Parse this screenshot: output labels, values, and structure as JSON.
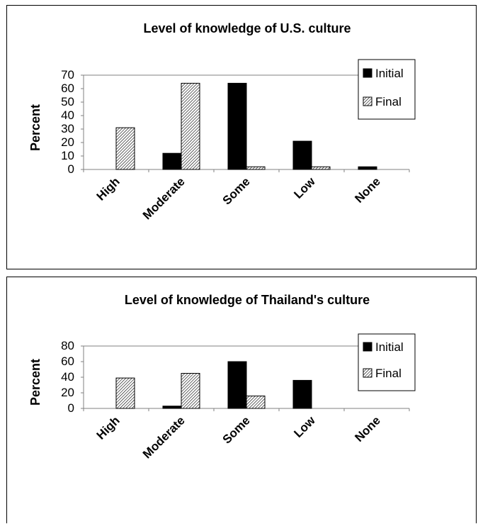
{
  "colors": {
    "initial": "#000000",
    "final_hatch": "#000000",
    "background": "#ffffff"
  },
  "chart_data": [
    {
      "type": "bar",
      "title": "Level of knowledge of U.S. culture",
      "ylabel": "Percent",
      "xlabel": "",
      "categories": [
        "High",
        "Moderate",
        "Some",
        "Low",
        "None"
      ],
      "yticks": [
        "70",
        "60",
        "50",
        "40",
        "30",
        "20",
        "10",
        "0"
      ],
      "ylim": [
        0,
        70
      ],
      "grid": false,
      "legend": "top-right",
      "series": [
        {
          "name": "Initial",
          "values": [
            0,
            12,
            64,
            21,
            2
          ]
        },
        {
          "name": "Final",
          "values": [
            31,
            64,
            2,
            2,
            0
          ]
        }
      ]
    },
    {
      "type": "bar",
      "title": "Level of knowledge of Thailand's culture",
      "ylabel": "Percent",
      "xlabel": "",
      "categories": [
        "High",
        "Moderate",
        "Some",
        "Low",
        "None"
      ],
      "yticks": [
        "80",
        "60",
        "40",
        "20",
        "0"
      ],
      "ylim": [
        0,
        80
      ],
      "grid": false,
      "legend": "top-right",
      "series": [
        {
          "name": "Initial",
          "values": [
            0,
            3,
            60,
            36,
            0
          ]
        },
        {
          "name": "Final",
          "values": [
            39,
            45,
            16,
            0,
            0
          ]
        }
      ]
    }
  ]
}
